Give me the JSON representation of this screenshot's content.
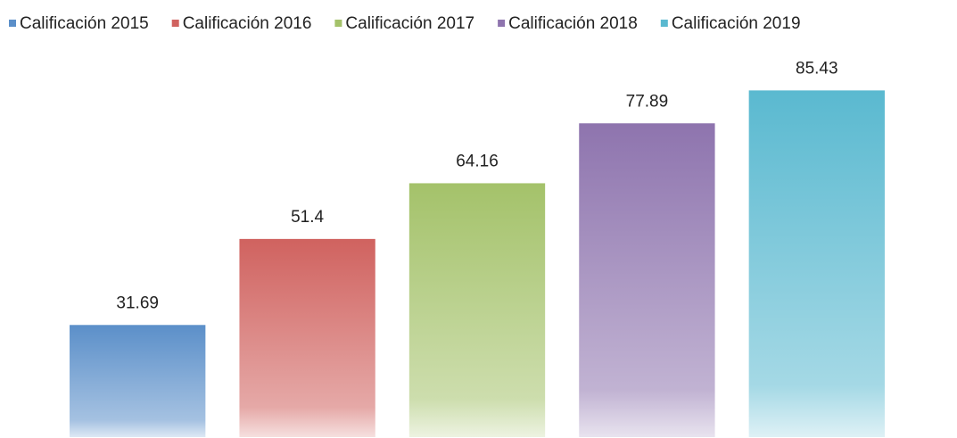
{
  "chart_data": {
    "type": "bar",
    "categories": [
      null
    ],
    "series": [
      {
        "name": "Calificación 2015",
        "color": "#5b8fc9",
        "values": [
          31.69
        ]
      },
      {
        "name": "Calificación 2016",
        "color": "#d0625f",
        "values": [
          51.4
        ]
      },
      {
        "name": "Calificación 2017",
        "color": "#a4c26a",
        "values": [
          64.16
        ]
      },
      {
        "name": "Calificación 2018",
        "color": "#8e74ae",
        "values": [
          77.89
        ]
      },
      {
        "name": "Calificación 2019",
        "color": "#5ab9d0",
        "values": [
          85.43
        ]
      }
    ],
    "ylim": [
      6,
      90
    ],
    "legend": "top"
  }
}
